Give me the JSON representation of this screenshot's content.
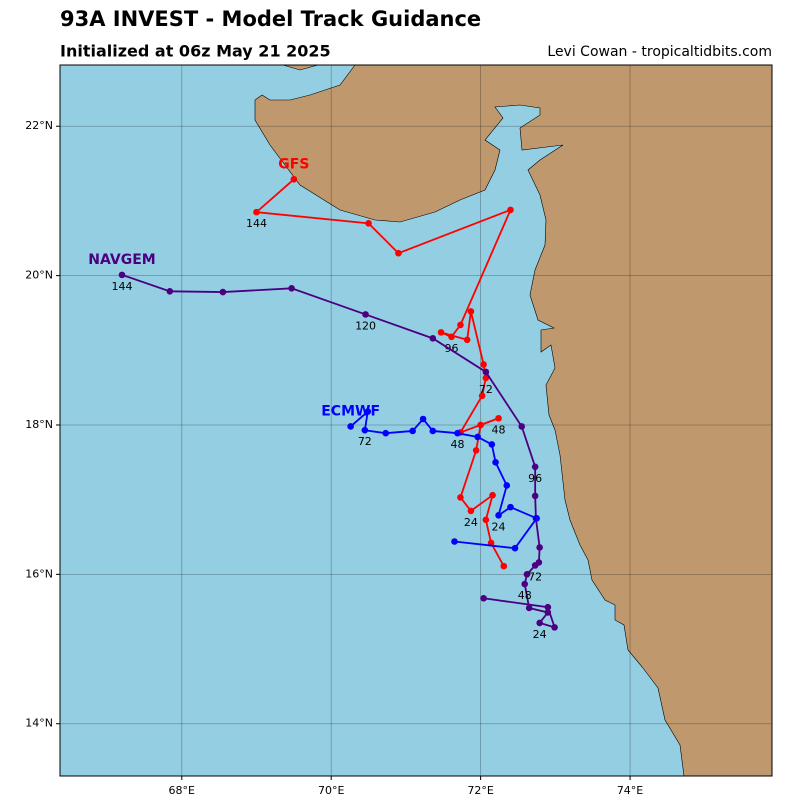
{
  "chart_data": {
    "type": "track-map",
    "title": "93A INVEST - Model Track Guidance",
    "subtitle": "Initialized at 06z May 21 2025",
    "credit": "Levi Cowan - tropicaltidbits.com",
    "xlim": [
      66.37,
      75.9
    ],
    "ylim": [
      13.3,
      22.82
    ],
    "xticks": [
      {
        "value": 68,
        "label": "68°E"
      },
      {
        "value": 70,
        "label": "70°E"
      },
      {
        "value": 72,
        "label": "72°E"
      },
      {
        "value": 74,
        "label": "74°E"
      }
    ],
    "yticks": [
      {
        "value": 14,
        "label": "14°N"
      },
      {
        "value": 16,
        "label": "16°N"
      },
      {
        "value": 18,
        "label": "18°N"
      },
      {
        "value": 20,
        "label": "20°N"
      },
      {
        "value": 22,
        "label": "22°N"
      }
    ],
    "grid": true,
    "series": [
      {
        "name": "GFS",
        "color": "#ff0000",
        "x": [
          72.31,
          72.14,
          72.07,
          72.16,
          71.87,
          71.73,
          71.94,
          72.0,
          72.24,
          71.73,
          72.02,
          72.07,
          72.04,
          71.87,
          71.82,
          71.47,
          71.61,
          71.73,
          72.4,
          70.9,
          70.5,
          69.0,
          69.5
        ],
        "values": [
          16.11,
          16.42,
          16.73,
          17.06,
          16.85,
          17.03,
          17.66,
          18.0,
          18.09,
          17.9,
          18.39,
          18.63,
          18.81,
          19.52,
          19.14,
          19.24,
          19.18,
          19.34,
          20.88,
          20.3,
          20.7,
          20.85,
          21.29
        ],
        "hour_labels": [
          null,
          null,
          null,
          null,
          24,
          null,
          null,
          null,
          48,
          null,
          null,
          72,
          null,
          null,
          null,
          null,
          96,
          null,
          null,
          null,
          null,
          144,
          null
        ]
      },
      {
        "name": "NAVGEM",
        "color": "#4b0082",
        "x": [
          72.04,
          72.9,
          72.99,
          72.79,
          72.9,
          72.65,
          72.59,
          72.62,
          72.73,
          72.78,
          72.79,
          72.74,
          72.73,
          72.73,
          72.55,
          72.07,
          71.36,
          70.46,
          69.47,
          68.55,
          67.84,
          67.2
        ],
        "values": [
          15.68,
          15.56,
          15.29,
          15.35,
          15.49,
          15.55,
          15.87,
          16.0,
          16.12,
          16.16,
          16.36,
          16.75,
          17.05,
          17.44,
          17.98,
          18.71,
          19.16,
          19.48,
          19.83,
          19.78,
          19.79,
          20.01
        ],
        "hour_labels": [
          null,
          null,
          null,
          24,
          null,
          null,
          48,
          null,
          72,
          null,
          null,
          null,
          null,
          96,
          null,
          null,
          null,
          120,
          null,
          null,
          null,
          144
        ]
      },
      {
        "name": "ECMWF",
        "color": "#0000ff",
        "x": [
          71.65,
          72.46,
          72.75,
          72.4,
          72.24,
          72.35,
          72.2,
          72.15,
          71.96,
          71.69,
          71.36,
          71.23,
          71.09,
          70.73,
          70.45,
          70.49,
          70.26
        ],
        "values": [
          16.44,
          16.35,
          16.75,
          16.9,
          16.79,
          17.19,
          17.5,
          17.74,
          17.84,
          17.89,
          17.92,
          18.08,
          17.92,
          17.89,
          17.93,
          18.18,
          17.98
        ],
        "hour_labels": [
          null,
          null,
          null,
          null,
          24,
          null,
          null,
          null,
          null,
          48,
          null,
          null,
          null,
          null,
          72,
          null,
          null
        ]
      }
    ]
  }
}
